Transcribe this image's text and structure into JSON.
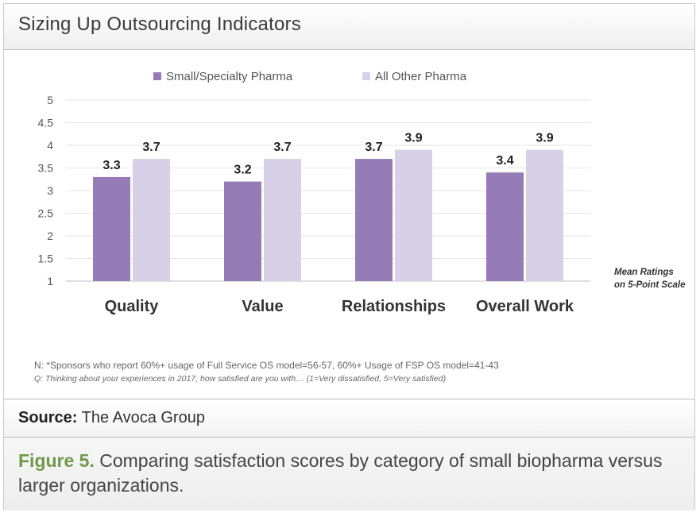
{
  "header": {
    "title": "Sizing Up Outsourcing Indicators"
  },
  "chart_data": {
    "type": "bar",
    "categories": [
      "Quality",
      "Value",
      "Relationships",
      "Overall Work"
    ],
    "series": [
      {
        "name": "Small/Specialty Pharma",
        "values": [
          3.3,
          3.2,
          3.7,
          3.4
        ],
        "color": "#957cb6"
      },
      {
        "name": "All Other Pharma",
        "values": [
          3.7,
          3.7,
          3.9,
          3.9
        ],
        "color": "#d8d0e6"
      }
    ],
    "data_labels": [
      [
        "3.3",
        "3.2",
        "3.7",
        "3.4"
      ],
      [
        "3.7",
        "3.7",
        "3.9",
        "3.9"
      ]
    ],
    "ylim": [
      1,
      5
    ],
    "yticks": [
      "1",
      "1.5",
      "2",
      "2.5",
      "3",
      "3.5",
      "4",
      "4.5",
      "5"
    ],
    "legend_position": "top",
    "grid": true,
    "annotation": [
      "Mean Ratings",
      "on 5-Point Scale"
    ]
  },
  "notes": {
    "line1": "N: *Sponsors who report 60%+ usage of Full Service OS model=56-57, 60%+ Usage of FSP OS model=41-43",
    "line2": "Q: Thinking about your experiences in 2017, how satisfied are you with… (1=Very dissatisfied, 5=Very satisfied)"
  },
  "source": {
    "label": "Source:",
    "text": "The Avoca Group"
  },
  "caption": {
    "figure_label": "Figure 5.",
    "text": "Comparing satisfaction scores by category of small biopharma versus larger organizations."
  }
}
